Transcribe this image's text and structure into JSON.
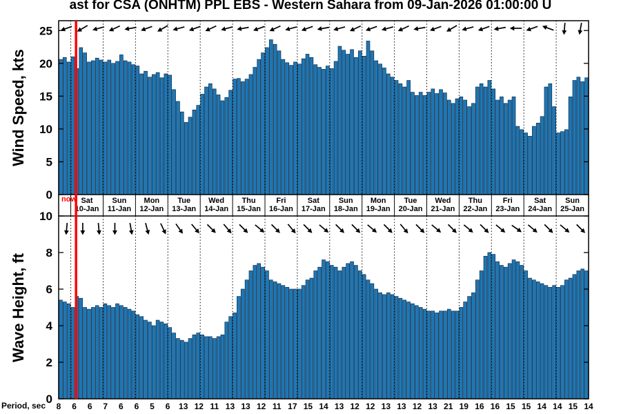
{
  "title": "ast for CSA (ONHTM) PPL EBS  - Western Sahara from 09-Jan-2026 01:00:00 U",
  "now_label": "now",
  "period_label": "Period, sec",
  "colors": {
    "bar": "#1f77b4",
    "bar_edge": "#0c2d4d",
    "now_line": "#ff0000",
    "axis": "#000000"
  },
  "timeline": {
    "lead_bars": 3,
    "bars_per_day": 8,
    "now_bar_index": 4.3,
    "bar_interval_hours": 3
  },
  "days": [
    {
      "name": "Sat",
      "date": "10-Jan"
    },
    {
      "name": "Sun",
      "date": "11-Jan"
    },
    {
      "name": "Mon",
      "date": "12-Jan"
    },
    {
      "name": "Tue",
      "date": "13-Jan"
    },
    {
      "name": "Wed",
      "date": "14-Jan"
    },
    {
      "name": "Thu",
      "date": "15-Jan"
    },
    {
      "name": "Fri",
      "date": "16-Jan"
    },
    {
      "name": "Sat",
      "date": "17-Jan"
    },
    {
      "name": "Sun",
      "date": "18-Jan"
    },
    {
      "name": "Mon",
      "date": "19-Jan"
    },
    {
      "name": "Tue",
      "date": "20-Jan"
    },
    {
      "name": "Wed",
      "date": "21-Jan"
    },
    {
      "name": "Thu",
      "date": "22-Jan"
    },
    {
      "name": "Fri",
      "date": "23-Jan"
    },
    {
      "name": "Sat",
      "date": "24-Jan"
    },
    {
      "name": "Sun",
      "date": "25-Jan"
    }
  ],
  "periods": [
    8,
    6,
    6,
    7,
    6,
    6,
    5,
    6,
    13,
    12,
    11,
    13,
    13,
    12,
    11,
    17,
    15,
    14,
    13,
    12,
    12,
    13,
    13,
    12,
    13,
    21,
    19,
    16,
    16,
    15,
    15,
    14,
    14,
    15,
    14
  ],
  "chart_data": [
    {
      "type": "bar",
      "ylabel": "Wind Speed, kts",
      "ylim": [
        0,
        26.5
      ],
      "yticks": [
        0,
        5,
        10,
        15,
        20,
        25
      ],
      "grid": "daily-dotted",
      "values": [
        20.6,
        20.9,
        20.2,
        21.0,
        19.2,
        22.4,
        21.6,
        20.2,
        20.4,
        20.8,
        20.5,
        20.2,
        20.5,
        20.0,
        20.3,
        21.3,
        20.4,
        20.2,
        19.8,
        19.6,
        18.4,
        18.8,
        17.9,
        18.3,
        18.6,
        17.8,
        18.4,
        18.2,
        16.0,
        14.2,
        12.6,
        11.0,
        11.8,
        12.9,
        13.6,
        15.3,
        16.4,
        16.9,
        16.1,
        15.2,
        14.3,
        14.8,
        15.9,
        17.6,
        17.7,
        17.2,
        17.6,
        18.3,
        19.4,
        20.6,
        21.6,
        22.4,
        23.6,
        22.9,
        21.9,
        20.6,
        20.1,
        19.7,
        20.2,
        19.9,
        20.7,
        21.4,
        20.9,
        19.8,
        19.4,
        19.1,
        19.6,
        19.2,
        20.3,
        22.6,
        22.0,
        21.4,
        22.1,
        20.9,
        21.9,
        21.1,
        23.4,
        21.9,
        20.4,
        19.9,
        19.3,
        18.4,
        17.9,
        17.4,
        16.9,
        16.4,
        17.4,
        15.6,
        15.1,
        15.6,
        15.1,
        15.6,
        16.1,
        15.4,
        16.0,
        15.5,
        14.4,
        13.9,
        14.6,
        14.9,
        14.4,
        13.4,
        13.9,
        16.4,
        16.9,
        16.4,
        17.4,
        16.1,
        14.4,
        14.9,
        13.9,
        14.4,
        14.9,
        10.4,
        9.9,
        9.4,
        8.9,
        10.4,
        10.9,
        11.9,
        16.4,
        16.9,
        13.4,
        9.4,
        9.6,
        9.9,
        14.9,
        17.4,
        17.9,
        17.2,
        17.8
      ],
      "arrow_angles_deg": [
        160,
        150,
        165,
        155,
        170,
        160,
        150,
        165,
        160,
        155,
        165,
        170,
        160,
        155,
        165,
        160,
        170,
        165,
        155,
        160,
        165,
        155,
        170,
        160,
        150,
        165,
        160,
        170,
        180,
        160,
        200,
        95,
        100
      ]
    },
    {
      "type": "bar",
      "ylabel": "Wave Height, ft",
      "ylim": [
        0,
        10
      ],
      "yticks": [
        0,
        2,
        4,
        6,
        8,
        10
      ],
      "grid": "daily-dotted",
      "values": [
        5.4,
        5.3,
        5.2,
        5.0,
        5.6,
        5.5,
        5.0,
        4.9,
        5.0,
        5.1,
        5.0,
        5.2,
        5.1,
        5.0,
        5.2,
        5.1,
        5.0,
        4.9,
        4.8,
        4.6,
        4.5,
        4.3,
        4.2,
        4.0,
        4.3,
        4.2,
        4.1,
        3.9,
        3.6,
        3.3,
        3.2,
        3.1,
        3.3,
        3.5,
        3.6,
        3.5,
        3.4,
        3.4,
        3.3,
        3.4,
        3.5,
        4.2,
        4.5,
        4.7,
        5.6,
        6.0,
        6.5,
        7.0,
        7.3,
        7.4,
        7.2,
        7.0,
        6.5,
        6.4,
        6.3,
        6.2,
        6.1,
        6.0,
        6.0,
        6.0,
        6.2,
        6.5,
        6.6,
        7.0,
        7.2,
        7.6,
        7.5,
        7.3,
        7.2,
        7.0,
        7.2,
        7.4,
        7.5,
        7.3,
        7.0,
        6.8,
        6.5,
        6.3,
        6.0,
        5.8,
        5.7,
        5.8,
        5.7,
        5.6,
        5.5,
        5.4,
        5.3,
        5.2,
        5.1,
        5.0,
        4.9,
        4.8,
        4.8,
        4.7,
        4.8,
        4.8,
        4.9,
        4.8,
        4.8,
        5.0,
        5.3,
        5.6,
        5.8,
        6.5,
        7.0,
        7.8,
        8.0,
        7.9,
        7.5,
        7.3,
        7.2,
        7.4,
        7.6,
        7.5,
        7.3,
        7.0,
        6.6,
        6.5,
        6.4,
        6.3,
        6.2,
        6.1,
        6.2,
        6.1,
        6.2,
        6.5,
        6.6,
        6.8,
        7.0,
        7.1,
        7.0
      ],
      "arrow_angles_deg": [
        95,
        90,
        85,
        90,
        80,
        75,
        65,
        55,
        50,
        45,
        50,
        45,
        40,
        45,
        50,
        45,
        40,
        45,
        45,
        40,
        45,
        50,
        45,
        40,
        45,
        40,
        45,
        40,
        35,
        40,
        45,
        40,
        45
      ]
    }
  ]
}
